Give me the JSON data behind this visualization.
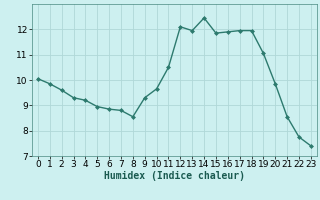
{
  "x": [
    0,
    1,
    2,
    3,
    4,
    5,
    6,
    7,
    8,
    9,
    10,
    11,
    12,
    13,
    14,
    15,
    16,
    17,
    18,
    19,
    20,
    21,
    22,
    23
  ],
  "y": [
    10.05,
    9.85,
    9.6,
    9.3,
    9.2,
    8.95,
    8.85,
    8.8,
    8.55,
    9.3,
    9.65,
    10.5,
    12.1,
    11.95,
    12.45,
    11.85,
    11.9,
    11.95,
    11.95,
    11.05,
    9.85,
    8.55,
    7.75,
    7.4
  ],
  "line_color": "#2d7a6e",
  "marker": "D",
  "marker_size": 2,
  "bg_color": "#cdf0f0",
  "grid_color": "#b0d8d8",
  "xlabel": "Humidex (Indice chaleur)",
  "xlabel_fontsize": 7,
  "ylim": [
    7,
    13
  ],
  "xlim": [
    -0.5,
    23.5
  ],
  "yticks": [
    7,
    8,
    9,
    10,
    11,
    12
  ],
  "xticks": [
    0,
    1,
    2,
    3,
    4,
    5,
    6,
    7,
    8,
    9,
    10,
    11,
    12,
    13,
    14,
    15,
    16,
    17,
    18,
    19,
    20,
    21,
    22,
    23
  ],
  "tick_fontsize": 6.5,
  "spine_color": "#4a8a80",
  "linewidth": 1.0
}
